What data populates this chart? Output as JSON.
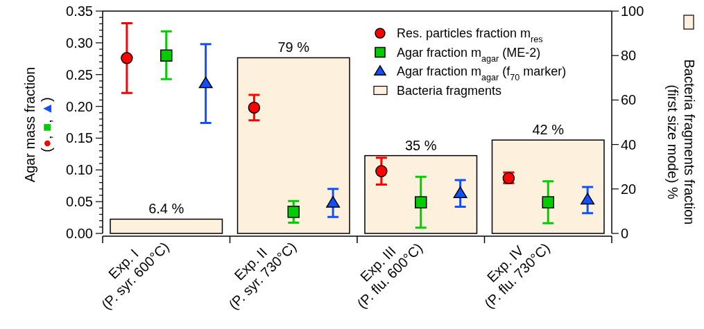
{
  "chart_data": {
    "type": "scatter",
    "categories": [
      "Exp. I\n(P. syr. 600°C)",
      "Exp. II\n(P. syr. 730°C)",
      "Exp. III\n(P. flu. 600°C)",
      "Exp. IV\n(P. flu. 730°C)"
    ],
    "ylabel": "Agar mass fraction\n(●, ■, ▲)",
    "y2label": "Bacteria fragments fraction\n(first size mode) %",
    "ylim": [
      0,
      0.35
    ],
    "yticks": [
      {
        "value": 0,
        "label": "0.00"
      },
      {
        "value": 0.01,
        "label": null
      },
      {
        "value": 0.02,
        "label": null
      },
      {
        "value": 0.03,
        "label": null
      },
      {
        "value": 0.04,
        "label": null
      },
      {
        "value": 0.05,
        "label": "0.05"
      },
      {
        "value": 0.06,
        "label": null
      },
      {
        "value": 0.07,
        "label": null
      },
      {
        "value": 0.08,
        "label": null
      },
      {
        "value": 0.09,
        "label": null
      },
      {
        "value": 0.1,
        "label": "0.10"
      },
      {
        "value": 0.11,
        "label": null
      },
      {
        "value": 0.12,
        "label": null
      },
      {
        "value": 0.13,
        "label": null
      },
      {
        "value": 0.14,
        "label": null
      },
      {
        "value": 0.15,
        "label": "0.15"
      },
      {
        "value": 0.16,
        "label": null
      },
      {
        "value": 0.17,
        "label": null
      },
      {
        "value": 0.18,
        "label": null
      },
      {
        "value": 0.19,
        "label": null
      },
      {
        "value": 0.2,
        "label": "0.20"
      },
      {
        "value": 0.21,
        "label": null
      },
      {
        "value": 0.22,
        "label": null
      },
      {
        "value": 0.23,
        "label": null
      },
      {
        "value": 0.24,
        "label": null
      },
      {
        "value": 0.25,
        "label": "0.25"
      },
      {
        "value": 0.26,
        "label": null
      },
      {
        "value": 0.27,
        "label": null
      },
      {
        "value": 0.28,
        "label": null
      },
      {
        "value": 0.29,
        "label": null
      },
      {
        "value": 0.3,
        "label": "0.30"
      },
      {
        "value": 0.31,
        "label": null
      },
      {
        "value": 0.32,
        "label": null
      },
      {
        "value": 0.33,
        "label": null
      },
      {
        "value": 0.34,
        "label": null
      },
      {
        "value": 0.35,
        "label": "0.35"
      }
    ],
    "y2lim": [
      0,
      100
    ],
    "y2ticks": [
      0,
      20,
      40,
      60,
      80,
      100
    ],
    "legend": "top right",
    "series": [
      {
        "name": "Bacteria fragments",
        "type": "bar",
        "axis": "y2",
        "color": "#fdf0dc",
        "values": [
          6.4,
          79,
          35,
          42
        ],
        "value_labels": [
          "6.4 %",
          "79 %",
          "35 %",
          "42 %"
        ]
      },
      {
        "name": "Res. particles fraction m$_{res}$",
        "marker": "circle",
        "color": "#ff0000",
        "values": [
          0.276,
          0.198,
          0.098,
          0.087
        ],
        "errors": [
          [
            0.221,
            0.331
          ],
          [
            0.178,
            0.218
          ],
          [
            0.077,
            0.119
          ],
          [
            0.079,
            0.096
          ]
        ]
      },
      {
        "name": "Agar fraction m$_{agar}$ (ME-2)",
        "marker": "square",
        "color": "#00cc00",
        "values": [
          0.28,
          0.034,
          0.049,
          0.049
        ],
        "errors": [
          [
            0.243,
            0.318
          ],
          [
            0.017,
            0.051
          ],
          [
            0.009,
            0.089
          ],
          [
            0.016,
            0.082
          ]
        ]
      },
      {
        "name": "Agar fraction m$_{agar}$ (f$_{70}$ marker)",
        "marker": "triangle",
        "color": "#1050ff",
        "values": [
          0.236,
          0.048,
          0.063,
          0.053
        ],
        "errors": [
          [
            0.174,
            0.298
          ],
          [
            0.026,
            0.07
          ],
          [
            0.042,
            0.084
          ],
          [
            0.032,
            0.073
          ]
        ]
      }
    ]
  }
}
